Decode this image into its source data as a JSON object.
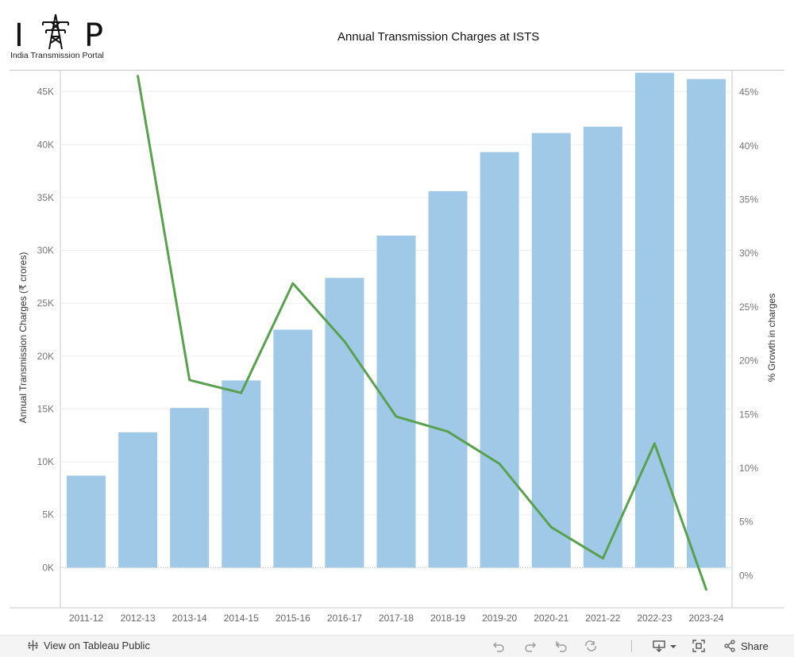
{
  "logo": {
    "letter_i": "I",
    "letter_p": "P",
    "subtitle": "India Transmission Portal"
  },
  "chart_data": {
    "type": "bar",
    "title": "Annual Transmission Charges at ISTS",
    "categories": [
      "2011-12",
      "2012-13",
      "2013-14",
      "2014-15",
      "2015-16",
      "2016-17",
      "2017-18",
      "2018-19",
      "2019-20",
      "2020-21",
      "2021-22",
      "2022-23",
      "2023-24"
    ],
    "series": [
      {
        "name": "Annual Transmission Charges (₹ crores)",
        "type": "bar",
        "axis": "left",
        "color": "#9fc9e7",
        "values": [
          8700,
          12800,
          15100,
          17700,
          22500,
          27400,
          31400,
          35600,
          39300,
          41100,
          41700,
          46800,
          46200
        ]
      },
      {
        "name": "% Growth in charges",
        "type": "line",
        "axis": "right",
        "color": "#59a14f",
        "values": [
          null,
          46.5,
          18.2,
          17.0,
          27.2,
          21.8,
          14.8,
          13.4,
          10.4,
          4.5,
          1.6,
          12.3,
          -1.3
        ]
      }
    ],
    "ylabel": "Annual Transmission Charges (₹ crores)",
    "ylabel_right": "% Growth in charges",
    "ylim": [
      -3800,
      47000
    ],
    "ylim_right": [
      -3.0,
      47.0
    ],
    "yticks": [
      {
        "value": 0,
        "label": "0K"
      },
      {
        "value": 5000,
        "label": "5K"
      },
      {
        "value": 10000,
        "label": "10K"
      },
      {
        "value": 15000,
        "label": "15K"
      },
      {
        "value": 20000,
        "label": "20K"
      },
      {
        "value": 25000,
        "label": "25K"
      },
      {
        "value": 30000,
        "label": "30K"
      },
      {
        "value": 35000,
        "label": "35K"
      },
      {
        "value": 40000,
        "label": "40K"
      },
      {
        "value": 45000,
        "label": "45K"
      }
    ],
    "yticks_right": [
      {
        "value": 0,
        "label": "0%"
      },
      {
        "value": 5,
        "label": "5%"
      },
      {
        "value": 10,
        "label": "10%"
      },
      {
        "value": 15,
        "label": "15%"
      },
      {
        "value": 20,
        "label": "20%"
      },
      {
        "value": 25,
        "label": "25%"
      },
      {
        "value": 30,
        "label": "30%"
      },
      {
        "value": 35,
        "label": "35%"
      },
      {
        "value": 40,
        "label": "40%"
      },
      {
        "value": 45,
        "label": "45%"
      }
    ]
  },
  "footer": {
    "view_label": "View on Tableau Public",
    "share_label": "Share",
    "icons": [
      "undo-icon",
      "redo-icon",
      "revert-icon",
      "refresh-icon",
      "download-icon",
      "fullscreen-icon",
      "share-icon"
    ]
  }
}
